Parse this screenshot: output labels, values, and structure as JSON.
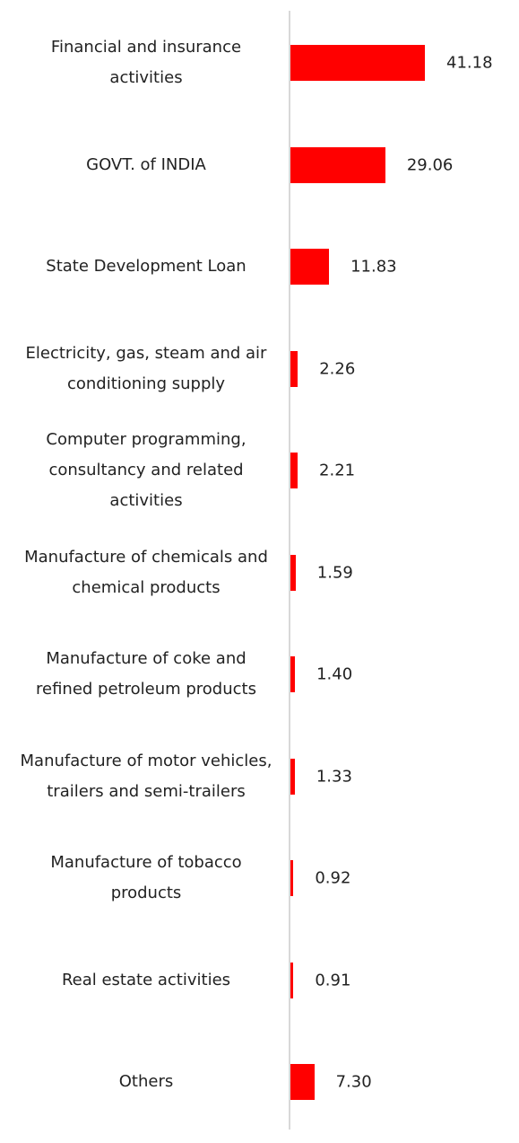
{
  "chart_data": {
    "type": "barh",
    "color": "#ff0000",
    "categories": [
      "Financial and insurance activities",
      "GOVT. of INDIA",
      "State Development Loan",
      "Electricity, gas, steam and air conditioning supply",
      "Computer programming, consultancy and related activities",
      "Manufacture of chemicals and chemical products",
      "Manufacture of coke and refined petroleum products",
      "Manufacture of motor vehicles, trailers and semi-trailers",
      "Manufacture of tobacco products",
      "Real estate activities",
      "Others"
    ],
    "values": [
      41.18,
      29.06,
      11.83,
      2.26,
      2.21,
      1.59,
      1.4,
      1.33,
      0.92,
      0.91,
      7.3
    ],
    "value_labels": [
      "41.18",
      "29.06",
      "11.83",
      "2.26",
      "2.21",
      "1.59",
      "1.40",
      "1.33",
      "0.92",
      "0.91",
      "7.30"
    ]
  }
}
